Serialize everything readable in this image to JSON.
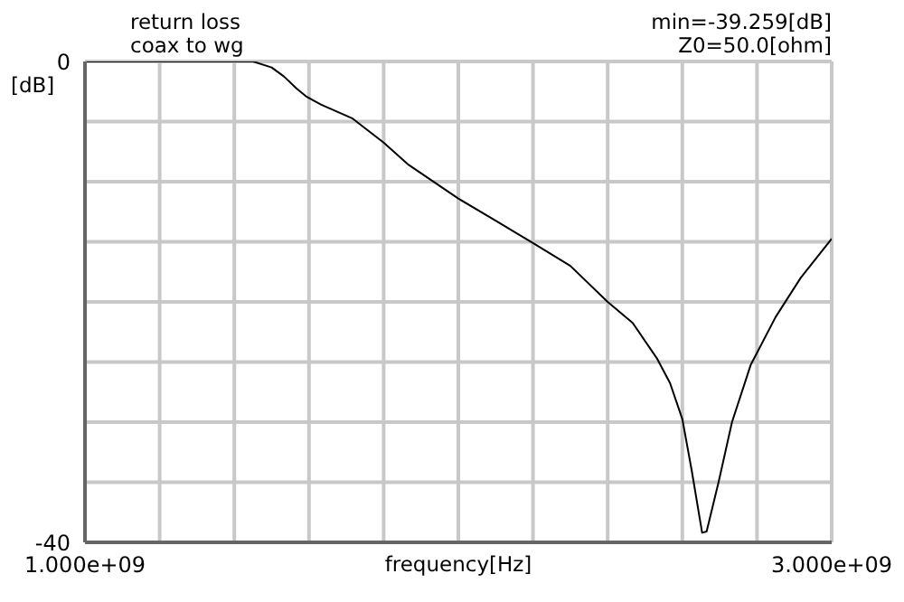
{
  "chart_data": {
    "type": "line",
    "title": "return loss",
    "subtitle": "coax to wg",
    "xlabel": "frequency[Hz]",
    "ylabel": "[dB]",
    "annotations": [
      "min=-39.259[dB]",
      "Z0=50.0[ohm]"
    ],
    "x": [
      1000000000,
      1450000000,
      1500000000,
      1533000000,
      1567000000,
      1592000000,
      1633000000,
      1717000000,
      1800000000,
      1867000000,
      2000000000,
      2100000000,
      2200000000,
      2300000000,
      2400000000,
      2467000000,
      2533000000,
      2567000000,
      2600000000,
      2625000000,
      2653000000,
      2665000000,
      2697000000,
      2733000000,
      2783000000,
      2850000000,
      2917000000,
      3000000000
    ],
    "series": [
      {
        "color": "#000000",
        "values": [
          0,
          0,
          -0.5,
          -1.25,
          -2.25,
          -2.9,
          -3.6,
          -4.75,
          -6.75,
          -8.6,
          -11.4,
          -13.25,
          -15.1,
          -17,
          -20,
          -21.75,
          -24.75,
          -26.75,
          -29.75,
          -34,
          -39.2,
          -39.1,
          -35,
          -30,
          -25.25,
          -21.25,
          -18,
          -14.75
        ]
      }
    ],
    "xlim": [
      1000000000,
      3000000000
    ],
    "xticks": [
      {
        "value": 1000000000,
        "label": "1.000e+09"
      },
      {
        "value": 1200000000,
        "label": null
      },
      {
        "value": 1400000000,
        "label": null
      },
      {
        "value": 1600000000,
        "label": null
      },
      {
        "value": 1800000000,
        "label": null
      },
      {
        "value": 2000000000,
        "label": null
      },
      {
        "value": 2200000000,
        "label": null
      },
      {
        "value": 2400000000,
        "label": null
      },
      {
        "value": 2600000000,
        "label": null
      },
      {
        "value": 2800000000,
        "label": null
      },
      {
        "value": 3000000000,
        "label": "3.000e+09"
      }
    ],
    "ylim": [
      -40,
      0
    ],
    "yticks": [
      -40,
      {
        "value": -35,
        "label": null
      },
      {
        "value": -30,
        "label": null
      },
      {
        "value": -25,
        "label": null
      },
      {
        "value": -20,
        "label": null
      },
      {
        "value": -15,
        "label": null
      },
      {
        "value": -10,
        "label": null
      },
      {
        "value": -5,
        "label": null
      },
      0
    ],
    "grid": true,
    "legend": false,
    "marker": "none",
    "line_style": "solid"
  }
}
